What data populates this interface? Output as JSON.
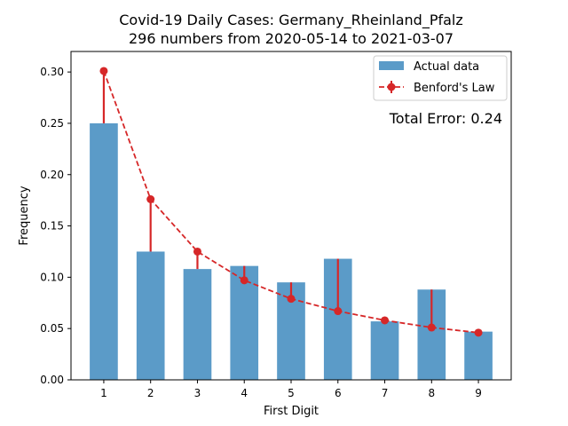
{
  "chart_data": {
    "type": "bar",
    "title": "Covid-19 Daily Cases: Germany_Rheinland_Pfalz",
    "subtitle": "296 numbers from 2020-05-14 to 2021-03-07",
    "xlabel": "First Digit",
    "ylabel": "Frequency",
    "categories": [
      "1",
      "2",
      "3",
      "4",
      "5",
      "6",
      "7",
      "8",
      "9"
    ],
    "ylim": [
      0,
      0.32
    ],
    "yticks": [
      "0.00",
      "0.05",
      "0.10",
      "0.15",
      "0.20",
      "0.25",
      "0.30"
    ],
    "series": [
      {
        "name": "Actual data",
        "type": "bar",
        "color": "#5b9bc8",
        "values": [
          0.25,
          0.125,
          0.108,
          0.111,
          0.095,
          0.118,
          0.057,
          0.088,
          0.047
        ]
      },
      {
        "name": "Benford's Law",
        "type": "line",
        "color": "#d62728",
        "values": [
          0.301,
          0.176,
          0.125,
          0.097,
          0.079,
          0.067,
          0.058,
          0.051,
          0.046
        ]
      }
    ],
    "annotation": "Total Error: 0.24",
    "annotation_color": "#d62728",
    "legend_position": "top-right",
    "grid": false
  }
}
